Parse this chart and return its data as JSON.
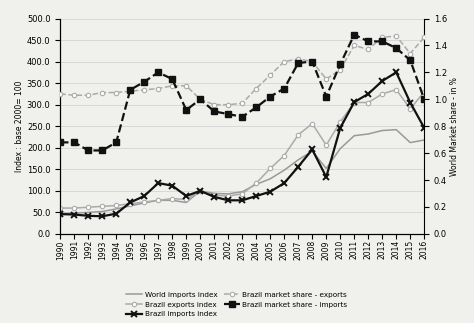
{
  "years": [
    1990,
    1991,
    1992,
    1993,
    1994,
    1995,
    1996,
    1997,
    1998,
    1999,
    2000,
    2001,
    2002,
    2003,
    2004,
    2005,
    2006,
    2007,
    2008,
    2009,
    2010,
    2011,
    2012,
    2013,
    2014,
    2015,
    2016
  ],
  "world_imports_index": [
    48,
    48,
    50,
    52,
    58,
    65,
    72,
    78,
    78,
    73,
    100,
    94,
    93,
    98,
    115,
    128,
    148,
    172,
    192,
    152,
    198,
    228,
    232,
    240,
    242,
    212,
    218
  ],
  "brazil_exports_index": [
    60,
    60,
    62,
    64,
    66,
    70,
    74,
    78,
    82,
    80,
    100,
    90,
    88,
    93,
    118,
    152,
    182,
    230,
    256,
    206,
    260,
    305,
    305,
    325,
    335,
    290,
    330
  ],
  "brazil_imports_index": [
    46,
    45,
    42,
    41,
    47,
    73,
    88,
    118,
    112,
    88,
    100,
    86,
    78,
    78,
    88,
    98,
    118,
    156,
    196,
    132,
    246,
    306,
    325,
    355,
    375,
    305,
    246
  ],
  "brazil_market_share_exports": [
    1.04,
    1.03,
    1.03,
    1.05,
    1.05,
    1.06,
    1.07,
    1.08,
    1.1,
    1.1,
    1.0,
    0.96,
    0.96,
    0.97,
    1.08,
    1.18,
    1.28,
    1.3,
    1.28,
    1.15,
    1.22,
    1.4,
    1.37,
    1.46,
    1.47,
    1.34,
    1.46
  ],
  "brazil_market_share_imports": [
    0.68,
    0.68,
    0.62,
    0.62,
    0.68,
    1.07,
    1.13,
    1.2,
    1.15,
    0.92,
    1.0,
    0.91,
    0.89,
    0.87,
    0.94,
    1.02,
    1.08,
    1.27,
    1.28,
    1.02,
    1.26,
    1.48,
    1.43,
    1.43,
    1.38,
    1.29,
    1.0
  ],
  "left_ylim": [
    0,
    500
  ],
  "left_yticks": [
    0,
    50,
    100,
    150,
    200,
    250,
    300,
    350,
    400,
    450,
    500
  ],
  "right_ylim": [
    0.0,
    1.6
  ],
  "right_yticks": [
    0.0,
    0.2,
    0.4,
    0.6,
    0.8,
    1.0,
    1.2,
    1.4,
    1.6
  ],
  "ylabel_left": "Index : base 2000= 100",
  "ylabel_right": "World Market share - in %",
  "color_world_imports": "#999999",
  "color_brazil_exports": "#aaaaaa",
  "color_brazil_imports": "#111111",
  "color_market_share_exports": "#aaaaaa",
  "color_market_share_imports": "#111111",
  "legend_labels": [
    "World imports index",
    "Brazil exports index",
    "Brazil imports index",
    "Brazil market share - exports",
    "Brazil market share - imports"
  ],
  "background_color": "#f0f0ec",
  "grid_color": "#d8d8d8"
}
